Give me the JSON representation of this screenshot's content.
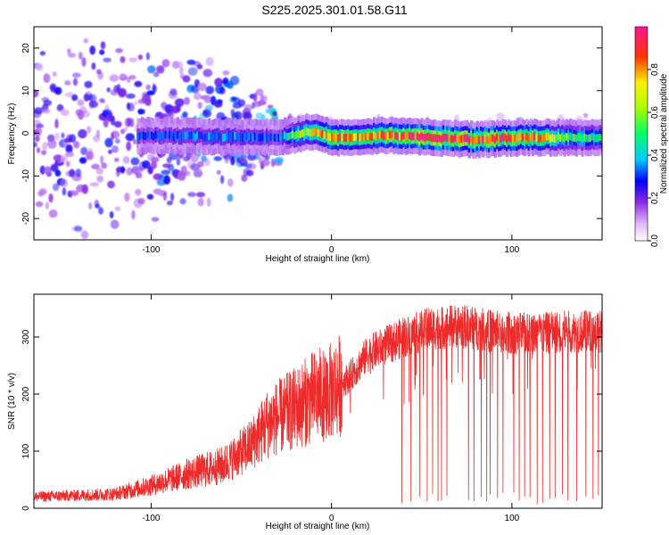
{
  "title": "S225.2025.301.01.58.G11",
  "colors": {
    "snr_line": "#ee2a2a",
    "frame": "#000000"
  },
  "chart_data": [
    {
      "type": "heatmap",
      "xlabel": "Height of straight line (km)",
      "ylabel": "Frequency (Hz)",
      "xlim": [
        -165,
        150
      ],
      "ylim": [
        -25,
        25
      ],
      "xticks": [
        -100,
        0,
        100
      ],
      "xtick_labels": [
        "-100",
        "0",
        "100"
      ],
      "yticks": [
        -20,
        -10,
        0,
        10,
        20
      ],
      "ytick_labels": [
        "-20",
        "-10",
        "0",
        "10",
        "20"
      ],
      "colorbar": {
        "label": "Normalized spectral amplitude",
        "range": [
          0,
          1
        ],
        "ticks": [
          0.0,
          0.2,
          0.4,
          0.6,
          0.8
        ],
        "tick_labels": [
          "0.0",
          "0.2",
          "0.4",
          "0.6",
          "0.8"
        ],
        "stops": [
          {
            "value": 0.0,
            "color": "#ffffff"
          },
          {
            "value": 0.08,
            "color": "#e0b8ff"
          },
          {
            "value": 0.18,
            "color": "#8a2be2"
          },
          {
            "value": 0.28,
            "color": "#0000ff"
          },
          {
            "value": 0.38,
            "color": "#00ccff"
          },
          {
            "value": 0.5,
            "color": "#00ff66"
          },
          {
            "value": 0.62,
            "color": "#aaff00"
          },
          {
            "value": 0.74,
            "color": "#ffee00"
          },
          {
            "value": 0.86,
            "color": "#ff3300"
          },
          {
            "value": 1.0,
            "color": "#ff1493"
          }
        ]
      },
      "ridge": {
        "description_points": [
          {
            "x": -105,
            "y": -0.5
          },
          {
            "x": -30,
            "y": -1
          },
          {
            "x": -10,
            "y": 0.5
          },
          {
            "x": 0,
            "y": -1
          },
          {
            "x": 30,
            "y": -0.5
          },
          {
            "x": 80,
            "y": -1.5
          },
          {
            "x": 100,
            "y": -1
          },
          {
            "x": 150,
            "y": -1
          }
        ],
        "strength": [
          {
            "x": -105,
            "v": 0.3
          },
          {
            "x": -60,
            "v": 0.35
          },
          {
            "x": -30,
            "v": 0.3
          },
          {
            "x": -20,
            "v": 0.6
          },
          {
            "x": 0,
            "v": 0.85
          },
          {
            "x": 20,
            "v": 0.75
          },
          {
            "x": 50,
            "v": 0.95
          },
          {
            "x": 80,
            "v": 0.9
          },
          {
            "x": 110,
            "v": 0.85
          },
          {
            "x": 130,
            "v": 0.55
          },
          {
            "x": 150,
            "v": 0.5
          }
        ]
      }
    },
    {
      "type": "line",
      "xlabel": "Height of straight line (km)",
      "ylabel": "SNR (10 * v/v)",
      "xlim": [
        -165,
        150
      ],
      "ylim": [
        0,
        375
      ],
      "xticks": [
        -100,
        0,
        100
      ],
      "xtick_labels": [
        "-100",
        "0",
        "100"
      ],
      "yticks": [
        0,
        100,
        200,
        300
      ],
      "ytick_labels": [
        "0",
        "100",
        "200",
        "300"
      ],
      "envelope": [
        {
          "x": -165,
          "y": 20
        },
        {
          "x": -120,
          "y": 25
        },
        {
          "x": -100,
          "y": 40
        },
        {
          "x": -80,
          "y": 60
        },
        {
          "x": -60,
          "y": 75
        },
        {
          "x": -45,
          "y": 110
        },
        {
          "x": -35,
          "y": 150
        },
        {
          "x": -20,
          "y": 175
        },
        {
          "x": -10,
          "y": 195
        },
        {
          "x": 0,
          "y": 205
        },
        {
          "x": 10,
          "y": 230
        },
        {
          "x": 20,
          "y": 270
        },
        {
          "x": 30,
          "y": 285
        },
        {
          "x": 40,
          "y": 300
        },
        {
          "x": 55,
          "y": 315
        },
        {
          "x": 70,
          "y": 320
        },
        {
          "x": 90,
          "y": 310
        },
        {
          "x": 110,
          "y": 305
        },
        {
          "x": 130,
          "y": 310
        },
        {
          "x": 150,
          "y": 310
        }
      ],
      "dropouts_x": [
        39,
        44,
        49,
        53,
        56,
        59,
        61,
        64,
        76,
        79,
        83,
        86,
        88,
        92,
        95,
        101,
        104,
        107,
        110,
        114,
        117,
        121,
        124,
        128,
        131,
        136,
        141,
        145,
        148
      ]
    }
  ]
}
